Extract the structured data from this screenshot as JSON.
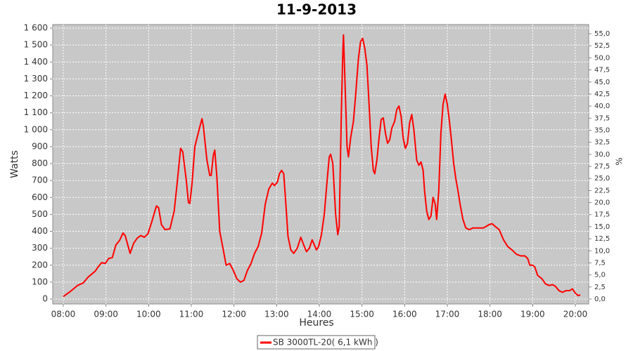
{
  "chart_data": {
    "type": "line",
    "title": "11-9-2013",
    "x_label": "Heures",
    "y_label": "Watts",
    "y2_label": "%",
    "x": [
      480,
      490,
      500,
      508,
      515,
      525,
      529,
      534,
      539,
      544,
      549,
      554,
      559,
      564,
      567,
      574,
      579,
      584,
      589,
      594,
      599,
      604,
      611,
      614,
      618,
      623,
      630,
      636,
      640,
      645,
      648,
      653,
      656,
      658,
      661,
      665,
      671,
      675,
      677,
      682,
      686,
      688,
      691,
      693,
      696,
      700,
      705,
      709,
      714,
      719,
      724,
      729,
      734,
      739,
      744,
      749,
      754,
      759,
      764,
      769,
      774,
      777,
      781,
      784,
      787,
      790,
      793,
      796,
      800,
      804,
      809,
      814,
      818,
      822,
      826,
      830,
      833,
      836,
      839,
      843,
      847,
      851,
      854,
      856,
      859,
      863,
      866,
      868,
      871,
      873,
      874,
      876,
      879,
      881,
      884,
      888,
      891,
      895,
      898,
      901,
      904,
      907,
      910,
      913,
      916,
      918,
      921,
      924,
      927,
      930,
      933,
      936,
      939,
      942,
      946,
      949,
      952,
      955,
      958,
      961,
      964,
      967,
      970,
      973,
      977,
      980,
      983,
      986,
      988,
      991,
      994,
      997,
      1000,
      1003,
      1005,
      1008,
      1011,
      1014,
      1017,
      1020,
      1023,
      1026,
      1029,
      1032,
      1035,
      1038,
      1042,
      1046,
      1051,
      1056,
      1064,
      1071,
      1075,
      1079,
      1083,
      1087,
      1093,
      1099,
      1105,
      1111,
      1117,
      1123,
      1129,
      1133,
      1136,
      1140,
      1143,
      1147,
      1153,
      1158,
      1163,
      1168,
      1172,
      1177,
      1182,
      1187,
      1192,
      1196,
      1200,
      1204,
      1207
    ],
    "series": [
      {
        "name": "SB 3000TL-20( 6,1 kWh )",
        "color": "#ff0000",
        "values": [
          15,
          45,
          80,
          95,
          130,
          165,
          190,
          215,
          210,
          240,
          245,
          320,
          345,
          390,
          375,
          270,
          330,
          360,
          375,
          365,
          385,
          450,
          550,
          540,
          440,
          410,
          415,
          520,
          680,
          890,
          870,
          700,
          570,
          565,
          680,
          900,
          1000,
          1065,
          1020,
          820,
          730,
          730,
          850,
          880,
          720,
          400,
          290,
          200,
          210,
          170,
          120,
          100,
          110,
          170,
          210,
          270,
          310,
          390,
          560,
          650,
          685,
          670,
          690,
          740,
          760,
          740,
          560,
          370,
          290,
          270,
          300,
          365,
          320,
          280,
          300,
          350,
          320,
          290,
          310,
          380,
          500,
          700,
          840,
          855,
          800,
          500,
          380,
          430,
          1100,
          1450,
          1560,
          1300,
          900,
          840,
          950,
          1050,
          1200,
          1420,
          1520,
          1540,
          1480,
          1380,
          1150,
          900,
          760,
          740,
          820,
          950,
          1060,
          1070,
          980,
          920,
          940,
          1010,
          1050,
          1120,
          1140,
          1080,
          950,
          890,
          920,
          1040,
          1090,
          1000,
          820,
          790,
          810,
          760,
          640,
          520,
          470,
          490,
          600,
          560,
          470,
          640,
          980,
          1150,
          1210,
          1150,
          1050,
          930,
          800,
          710,
          640,
          560,
          470,
          420,
          410,
          420,
          420,
          420,
          430,
          440,
          445,
          430,
          410,
          350,
          310,
          290,
          265,
          255,
          255,
          240,
          200,
          200,
          190,
          140,
          120,
          90,
          80,
          85,
          75,
          50,
          40,
          50,
          50,
          60,
          35,
          20,
          25
        ]
      }
    ],
    "xlim": [
      465.2,
      1218.8
    ],
    "xticks": [
      {
        "value": 480,
        "label": "08:00"
      },
      {
        "value": 540,
        "label": "09:00"
      },
      {
        "value": 600,
        "label": "10:00"
      },
      {
        "value": 660,
        "label": "11:00"
      },
      {
        "value": 720,
        "label": "12:00"
      },
      {
        "value": 780,
        "label": "13:00"
      },
      {
        "value": 840,
        "label": "14:00"
      },
      {
        "value": 900,
        "label": "15:00"
      },
      {
        "value": 960,
        "label": "16:00"
      },
      {
        "value": 1020,
        "label": "17:00"
      },
      {
        "value": 1080,
        "label": "18:00"
      },
      {
        "value": 1140,
        "label": "19:00"
      },
      {
        "value": 1200,
        "label": "20:00"
      }
    ],
    "ylim": [
      -29,
      1621
    ],
    "yticks": [
      0,
      100,
      200,
      300,
      400,
      500,
      600,
      700,
      800,
      900,
      {
        "value": 1000,
        "label": "1 000"
      },
      {
        "value": 1100,
        "label": "1 100"
      },
      {
        "value": 1200,
        "label": "1 200"
      },
      {
        "value": 1300,
        "label": "1 300"
      },
      {
        "value": 1400,
        "label": "1 400"
      },
      {
        "value": 1500,
        "label": "1 500"
      },
      {
        "value": 1600,
        "label": "1 600"
      }
    ],
    "y2lim": [
      -1.02,
      56.9
    ],
    "y2ticks": [
      {
        "value": 0,
        "label": "0,0"
      },
      {
        "value": 2.5,
        "label": "2,5"
      },
      {
        "value": 5,
        "label": "5,0"
      },
      {
        "value": 7.5,
        "label": "7,5"
      },
      {
        "value": 10,
        "label": "10,0"
      },
      {
        "value": 12.5,
        "label": "12,5"
      },
      {
        "value": 15,
        "label": "15,0"
      },
      {
        "value": 17.5,
        "label": "17,5"
      },
      {
        "value": 20,
        "label": "20,0"
      },
      {
        "value": 22.5,
        "label": "22,5"
      },
      {
        "value": 25,
        "label": "25,0"
      },
      {
        "value": 27.5,
        "label": "27,5"
      },
      {
        "value": 30,
        "label": "30,0"
      },
      {
        "value": 32.5,
        "label": "32,5"
      },
      {
        "value": 35,
        "label": "35,0"
      },
      {
        "value": 37.5,
        "label": "37,5"
      },
      {
        "value": 40,
        "label": "40,0"
      },
      {
        "value": 42.5,
        "label": "42,5"
      },
      {
        "value": 45,
        "label": "45,0"
      },
      {
        "value": 47.5,
        "label": "47,5"
      },
      {
        "value": 50,
        "label": "50,0"
      },
      {
        "value": 52.5,
        "label": "52,5"
      },
      {
        "value": 55,
        "label": "55,0"
      }
    ],
    "grid": true
  }
}
